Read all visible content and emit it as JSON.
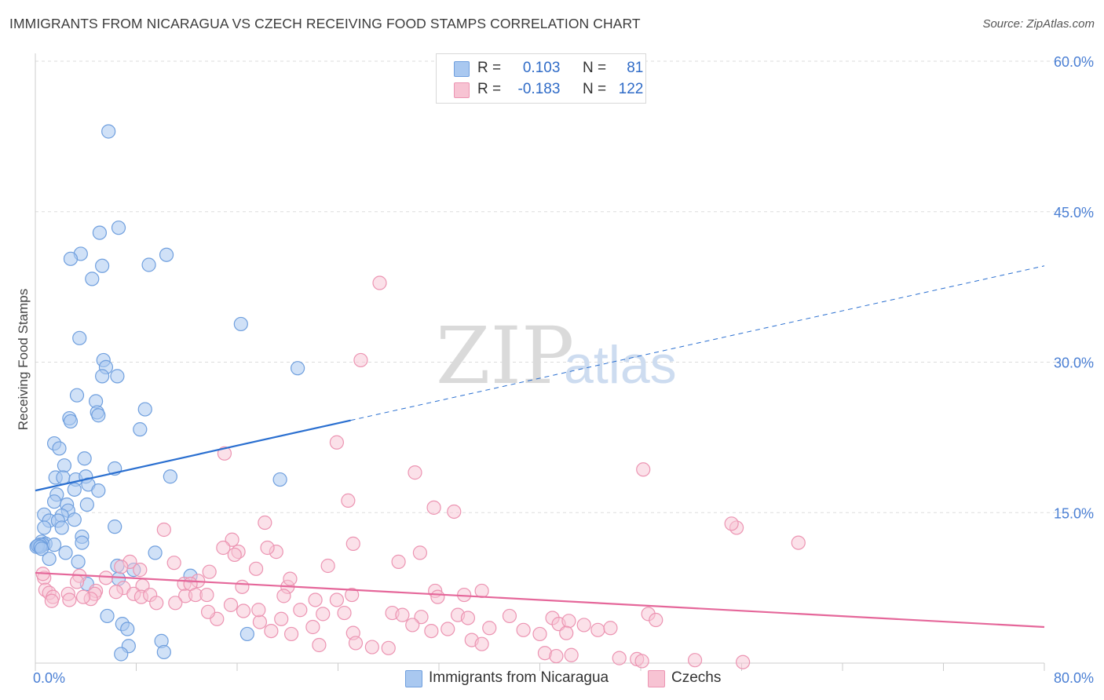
{
  "title": "IMMIGRANTS FROM NICARAGUA VS CZECH RECEIVING FOOD STAMPS CORRELATION CHART",
  "source": "Source: ZipAtlas.com",
  "watermark": {
    "zip": "ZIP",
    "atlas": "atlas"
  },
  "legend": {
    "rows": [
      {
        "r_label": "R =",
        "r_value": "0.103",
        "n_label": "N =",
        "n_value": "81"
      },
      {
        "r_label": "R =",
        "r_value": "-0.183",
        "n_label": "N =",
        "n_value": "122"
      }
    ]
  },
  "colors": {
    "nicaragua_fill": "#a9c8f0",
    "nicaragua_stroke": "#6f9fde",
    "nicaragua_line": "#2a6fd0",
    "czech_fill": "#f7c3d3",
    "czech_stroke": "#ec94b2",
    "czech_line": "#e5679a",
    "tick_label": "#4a7fd4",
    "grid": "#dddddd"
  },
  "chart_data": {
    "type": "scatter",
    "title": "IMMIGRANTS FROM NICARAGUA VS CZECH RECEIVING FOOD STAMPS CORRELATION CHART",
    "xlabel": "",
    "ylabel": "Receiving Food Stamps",
    "xlim": [
      0,
      80
    ],
    "ylim": [
      0,
      60
    ],
    "x_tick_labels": [
      "0.0%",
      "80.0%"
    ],
    "y_tick_labels": [
      "15.0%",
      "30.0%",
      "45.0%",
      "60.0%"
    ],
    "y_ticks": [
      15,
      30,
      45,
      60
    ],
    "grid": true,
    "legend_position": "top-center",
    "series": [
      {
        "name": "Immigrants from Nicaragua",
        "r": 0.103,
        "n": 81,
        "trend": {
          "x0": 0,
          "y0": 17.2,
          "x1": 25,
          "y1": 24.2,
          "dashed_to_x": 80,
          "dashed_to_y": 39.6
        },
        "points": [
          [
            5.8,
            53.0
          ],
          [
            6.6,
            43.4
          ],
          [
            5.1,
            42.9
          ],
          [
            3.6,
            40.8
          ],
          [
            10.4,
            40.7
          ],
          [
            2.8,
            40.3
          ],
          [
            9.0,
            39.7
          ],
          [
            5.3,
            39.6
          ],
          [
            4.5,
            38.3
          ],
          [
            16.3,
            33.8
          ],
          [
            3.5,
            32.4
          ],
          [
            5.4,
            30.2
          ],
          [
            5.6,
            29.5
          ],
          [
            20.8,
            29.4
          ],
          [
            5.3,
            28.6
          ],
          [
            6.5,
            28.6
          ],
          [
            3.3,
            26.7
          ],
          [
            4.8,
            26.1
          ],
          [
            8.7,
            25.3
          ],
          [
            4.9,
            25.0
          ],
          [
            5.0,
            24.7
          ],
          [
            2.7,
            24.4
          ],
          [
            2.8,
            24.1
          ],
          [
            8.3,
            23.3
          ],
          [
            1.5,
            21.9
          ],
          [
            1.9,
            21.4
          ],
          [
            3.9,
            20.4
          ],
          [
            2.3,
            19.7
          ],
          [
            6.3,
            19.4
          ],
          [
            1.6,
            18.5
          ],
          [
            2.2,
            18.5
          ],
          [
            3.2,
            18.3
          ],
          [
            4.0,
            18.6
          ],
          [
            10.7,
            18.6
          ],
          [
            19.4,
            18.3
          ],
          [
            4.2,
            17.8
          ],
          [
            3.1,
            17.3
          ],
          [
            5.0,
            17.2
          ],
          [
            1.7,
            16.8
          ],
          [
            1.5,
            16.1
          ],
          [
            2.5,
            15.8
          ],
          [
            4.1,
            15.8
          ],
          [
            2.6,
            15.2
          ],
          [
            0.7,
            14.8
          ],
          [
            2.1,
            14.7
          ],
          [
            3.1,
            14.3
          ],
          [
            1.1,
            14.2
          ],
          [
            1.8,
            14.2
          ],
          [
            6.3,
            13.6
          ],
          [
            0.7,
            13.5
          ],
          [
            2.1,
            13.5
          ],
          [
            3.7,
            12.6
          ],
          [
            0.5,
            12.1
          ],
          [
            3.7,
            12.0
          ],
          [
            0.8,
            11.9
          ],
          [
            0.3,
            11.7
          ],
          [
            0.6,
            11.8
          ],
          [
            0.4,
            11.8
          ],
          [
            0.1,
            11.6
          ],
          [
            0.2,
            11.7
          ],
          [
            0.4,
            11.6
          ],
          [
            0.5,
            11.4
          ],
          [
            1.5,
            11.8
          ],
          [
            2.4,
            11.0
          ],
          [
            9.5,
            11.0
          ],
          [
            1.1,
            10.4
          ],
          [
            3.4,
            10.1
          ],
          [
            6.5,
            9.7
          ],
          [
            7.8,
            9.3
          ],
          [
            12.3,
            8.7
          ],
          [
            6.6,
            8.4
          ],
          [
            4.1,
            7.9
          ],
          [
            5.7,
            4.7
          ],
          [
            6.9,
            3.9
          ],
          [
            7.3,
            3.4
          ],
          [
            16.8,
            2.9
          ],
          [
            10.0,
            2.2
          ],
          [
            7.4,
            1.7
          ],
          [
            10.2,
            1.1
          ],
          [
            6.8,
            0.9
          ]
        ]
      },
      {
        "name": "Czechs",
        "r": -0.183,
        "n": 122,
        "trend": {
          "x0": 0,
          "y0": 9.0,
          "x1": 80,
          "y1": 3.6
        },
        "points": [
          [
            27.3,
            37.9
          ],
          [
            25.8,
            30.2
          ],
          [
            23.9,
            22.0
          ],
          [
            15.0,
            20.9
          ],
          [
            30.1,
            19.0
          ],
          [
            48.2,
            19.3
          ],
          [
            24.8,
            16.2
          ],
          [
            31.6,
            15.5
          ],
          [
            33.2,
            15.1
          ],
          [
            18.2,
            14.0
          ],
          [
            10.2,
            13.3
          ],
          [
            55.6,
            13.5
          ],
          [
            15.6,
            12.3
          ],
          [
            25.2,
            11.9
          ],
          [
            60.5,
            12.0
          ],
          [
            19.1,
            11.1
          ],
          [
            14.9,
            11.5
          ],
          [
            16.1,
            11.1
          ],
          [
            15.8,
            10.8
          ],
          [
            18.4,
            11.5
          ],
          [
            30.5,
            11.0
          ],
          [
            28.8,
            10.1
          ],
          [
            23.2,
            9.7
          ],
          [
            11.0,
            10.0
          ],
          [
            7.5,
            10.1
          ],
          [
            6.8,
            9.6
          ],
          [
            8.3,
            9.3
          ],
          [
            13.8,
            9.1
          ],
          [
            17.5,
            9.4
          ],
          [
            3.5,
            8.7
          ],
          [
            0.7,
            8.5
          ],
          [
            0.6,
            8.9
          ],
          [
            5.6,
            8.5
          ],
          [
            3.3,
            8.1
          ],
          [
            8.5,
            7.7
          ],
          [
            11.8,
            7.9
          ],
          [
            12.9,
            8.2
          ],
          [
            16.4,
            7.6
          ],
          [
            20.0,
            7.6
          ],
          [
            20.2,
            8.4
          ],
          [
            12.3,
            7.9
          ],
          [
            7.0,
            7.5
          ],
          [
            4.8,
            7.2
          ],
          [
            0.8,
            7.3
          ],
          [
            1.1,
            7.0
          ],
          [
            2.6,
            6.9
          ],
          [
            4.7,
            6.9
          ],
          [
            6.4,
            7.1
          ],
          [
            7.8,
            6.9
          ],
          [
            8.4,
            6.6
          ],
          [
            9.1,
            6.8
          ],
          [
            11.9,
            6.7
          ],
          [
            12.7,
            6.8
          ],
          [
            13.6,
            6.8
          ],
          [
            19.7,
            6.7
          ],
          [
            22.2,
            6.3
          ],
          [
            23.9,
            6.3
          ],
          [
            25.1,
            6.8
          ],
          [
            31.7,
            7.2
          ],
          [
            35.4,
            7.2
          ],
          [
            31.9,
            6.6
          ],
          [
            34.0,
            6.8
          ],
          [
            1.4,
            6.6
          ],
          [
            2.7,
            6.3
          ],
          [
            4.4,
            6.4
          ],
          [
            1.3,
            6.2
          ],
          [
            3.8,
            6.6
          ],
          [
            9.6,
            6.0
          ],
          [
            11.1,
            6.0
          ],
          [
            15.5,
            5.8
          ],
          [
            16.5,
            5.2
          ],
          [
            21.0,
            5.3
          ],
          [
            22.8,
            4.9
          ],
          [
            24.5,
            5.0
          ],
          [
            28.3,
            5.0
          ],
          [
            29.1,
            4.8
          ],
          [
            30.6,
            4.6
          ],
          [
            33.5,
            4.8
          ],
          [
            34.3,
            4.5
          ],
          [
            37.6,
            4.7
          ],
          [
            41.0,
            4.5
          ],
          [
            41.5,
            3.9
          ],
          [
            42.3,
            4.2
          ],
          [
            43.5,
            3.8
          ],
          [
            48.6,
            4.9
          ],
          [
            49.2,
            4.3
          ],
          [
            14.4,
            4.4
          ],
          [
            17.8,
            4.1
          ],
          [
            19.5,
            4.4
          ],
          [
            17.7,
            5.3
          ],
          [
            13.7,
            5.1
          ],
          [
            29.9,
            3.8
          ],
          [
            36.0,
            3.5
          ],
          [
            38.7,
            3.3
          ],
          [
            40.0,
            2.9
          ],
          [
            42.1,
            3.0
          ],
          [
            44.6,
            3.3
          ],
          [
            45.6,
            3.5
          ],
          [
            18.7,
            3.2
          ],
          [
            20.3,
            2.9
          ],
          [
            22.0,
            3.6
          ],
          [
            25.2,
            3.0
          ],
          [
            25.4,
            2.0
          ],
          [
            31.4,
            3.2
          ],
          [
            32.7,
            3.4
          ],
          [
            34.6,
            2.3
          ],
          [
            35.4,
            1.9
          ],
          [
            22.5,
            1.8
          ],
          [
            26.7,
            1.6
          ],
          [
            28.0,
            1.5
          ],
          [
            40.4,
            1.0
          ],
          [
            41.3,
            0.7
          ],
          [
            42.5,
            0.8
          ],
          [
            46.3,
            0.5
          ],
          [
            47.7,
            0.4
          ],
          [
            48.1,
            0.2
          ],
          [
            52.3,
            0.3
          ],
          [
            56.1,
            0.1
          ],
          [
            55.2,
            13.9
          ]
        ]
      }
    ]
  },
  "bottom_legend": {
    "items": [
      "Immigrants from Nicaragua",
      "Czechs"
    ]
  }
}
